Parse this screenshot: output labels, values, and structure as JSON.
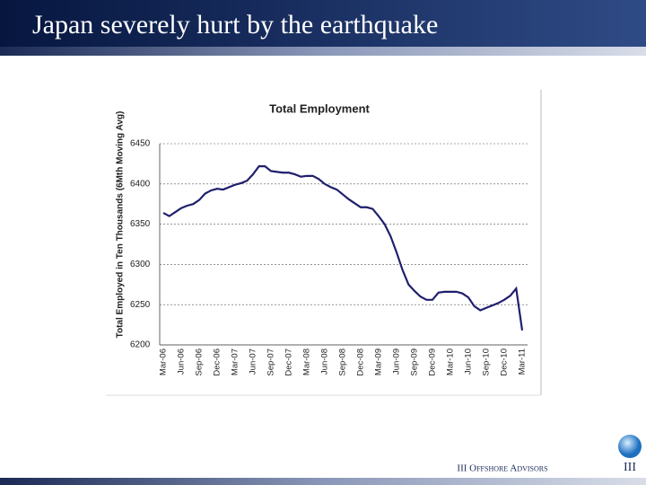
{
  "header": {
    "title": "Japan severely hurt by the earthquake"
  },
  "chart_data": {
    "type": "line",
    "title": "Total Employment",
    "y_label": "Total Employed in Ten Thousands (6Mth Moving Avg)",
    "categories": [
      "Mar-06",
      null,
      null,
      "Jun-06",
      null,
      null,
      "Sep-06",
      null,
      null,
      "Dec-06",
      null,
      null,
      "Mar-07",
      null,
      null,
      "Jun-07",
      null,
      null,
      "Sep-07",
      null,
      null,
      "Dec-07",
      null,
      null,
      "Mar-08",
      null,
      null,
      "Jun-08",
      null,
      null,
      "Sep-08",
      null,
      null,
      "Dec-08",
      null,
      null,
      "Mar-09",
      null,
      null,
      "Jun-09",
      null,
      null,
      "Sep-09",
      null,
      null,
      "Dec-09",
      null,
      null,
      "Mar-10",
      null,
      null,
      "Jun-10",
      null,
      null,
      "Sep-10",
      null,
      null,
      "Dec-10",
      null,
      null,
      "Mar-11"
    ],
    "values": [
      6364,
      6360,
      6365,
      6370,
      6373,
      6375,
      6380,
      6388,
      6392,
      6394,
      6393,
      6396,
      6399,
      6401,
      6404,
      6412,
      6422,
      6422,
      6416,
      6415,
      6414,
      6414,
      6412,
      6409,
      6410,
      6410,
      6406,
      6400,
      6396,
      6393,
      6387,
      6381,
      6376,
      6371,
      6371,
      6369,
      6360,
      6350,
      6335,
      6315,
      6293,
      6275,
      6267,
      6260,
      6256,
      6256,
      6265,
      6266,
      6266,
      6266,
      6264,
      6259,
      6248,
      6243,
      6246,
      6249,
      6252,
      6256,
      6261,
      6270,
      6218
    ],
    "color": "#1f1f6e",
    "ylim": [
      6200,
      6450
    ],
    "yticks": [
      6200,
      6250,
      6300,
      6350,
      6400,
      6450
    ],
    "grid": true
  },
  "footer": {
    "company": "III Offshore Advisors",
    "logo": "III"
  }
}
